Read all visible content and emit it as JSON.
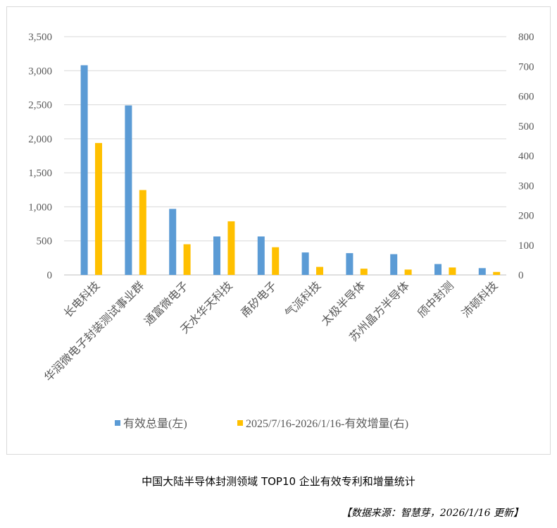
{
  "chart_data": {
    "type": "bar",
    "title": "中国大陆半导体封测领域 TOP10 企业有效专利和增量统计",
    "categories": [
      "长电科技",
      "华润微电子封装测试事业群",
      "通富微电子",
      "天水华天科技",
      "甬矽电子",
      "气派科技",
      "太极半导体",
      "苏州晶方半导体",
      "颀中封测",
      "沛顿科技"
    ],
    "series": [
      {
        "name": "有效总量(左)",
        "axis": "left",
        "color": "#5b9bd5",
        "values": [
          3080,
          2490,
          970,
          565,
          565,
          330,
          320,
          305,
          160,
          100
        ]
      },
      {
        "name": "2025/7/16-2026/1/16-有效增量(右)",
        "axis": "right",
        "color": "#ffc000",
        "values": [
          443,
          285,
          103,
          180,
          93,
          27,
          21,
          18,
          25,
          10
        ]
      }
    ],
    "left_axis": {
      "min": 0,
      "max": 3500,
      "step": 500,
      "tick_labels": [
        "0",
        "500",
        "1,000",
        "1,500",
        "2,000",
        "2,500",
        "3,000",
        "3,500"
      ]
    },
    "right_axis": {
      "min": 0,
      "max": 800,
      "step": 100,
      "tick_labels": [
        "0",
        "100",
        "200",
        "300",
        "400",
        "500",
        "600",
        "700",
        "800"
      ]
    },
    "grid": true,
    "legend_position": "bottom"
  },
  "caption": "中国大陆半导体封测领域 TOP10 企业有效专利和增量统计",
  "source": "【数据来源：智慧芽，2026/1/16 更新】"
}
